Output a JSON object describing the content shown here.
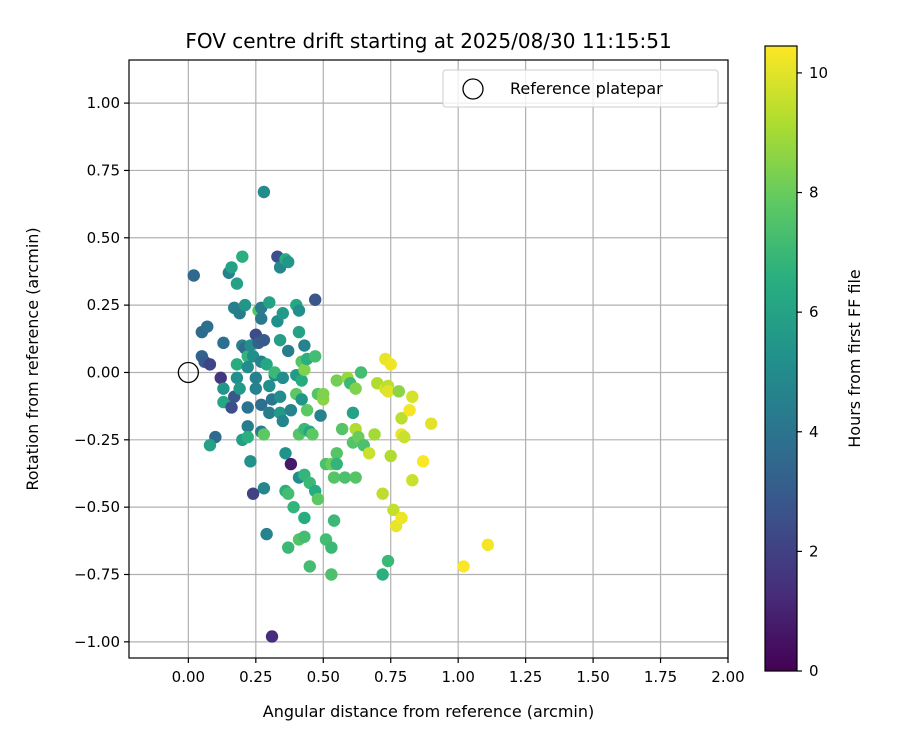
{
  "chart_data": {
    "type": "scatter",
    "title": "FOV centre drift starting at 2025/08/30 11:15:51",
    "xlabel": "Angular distance from reference (arcmin)",
    "ylabel": "Rotation from reference (arcmin)",
    "xlim": [
      -0.22,
      2.0
    ],
    "ylim": [
      -1.06,
      1.16
    ],
    "xticks": [
      0.0,
      0.25,
      0.5,
      0.75,
      1.0,
      1.25,
      1.5,
      1.75,
      2.0
    ],
    "xtick_labels": [
      "0.00",
      "0.25",
      "0.50",
      "0.75",
      "1.00",
      "1.25",
      "1.50",
      "1.75",
      "2.00"
    ],
    "yticks": [
      1.0,
      0.75,
      0.5,
      0.25,
      0.0,
      -0.25,
      -0.5,
      -0.75,
      -1.0
    ],
    "ytick_labels": [
      "1.00",
      "0.75",
      "0.50",
      "0.25",
      "0.00",
      "−0.25",
      "−0.50",
      "−0.75",
      "−1.00"
    ],
    "grid": true,
    "colormap": "viridis",
    "colorbar": {
      "label": "Hours from first FF file",
      "range": [
        0,
        10.45
      ],
      "ticks": [
        0,
        2,
        4,
        6,
        8,
        10
      ],
      "tick_labels": [
        "0",
        "2",
        "4",
        "6",
        "8",
        "10"
      ]
    },
    "legend": {
      "position": "top-right",
      "entries": [
        "Reference platepar"
      ]
    },
    "reference": {
      "x": 0.0,
      "y": 0.0
    },
    "points": [
      [
        0.02,
        0.36,
        3.5
      ],
      [
        0.05,
        0.15,
        3.6
      ],
      [
        0.07,
        0.17,
        3.8
      ],
      [
        0.05,
        0.06,
        3.3
      ],
      [
        0.06,
        0.04,
        3.0
      ],
      [
        0.08,
        0.03,
        2.2
      ],
      [
        0.1,
        -0.24,
        3.6
      ],
      [
        0.08,
        -0.27,
        6.0
      ],
      [
        0.12,
        -0.02,
        1.6
      ],
      [
        0.13,
        -0.06,
        5.5
      ],
      [
        0.13,
        -0.11,
        6.2
      ],
      [
        0.13,
        0.11,
        3.8
      ],
      [
        0.15,
        0.37,
        4.6
      ],
      [
        0.16,
        0.39,
        6.0
      ],
      [
        0.17,
        0.24,
        4.5
      ],
      [
        0.18,
        0.33,
        6.0
      ],
      [
        0.16,
        -0.13,
        2.5
      ],
      [
        0.17,
        -0.09,
        2.8
      ],
      [
        0.18,
        -0.02,
        5.2
      ],
      [
        0.18,
        0.03,
        6.5
      ],
      [
        0.19,
        0.22,
        4.4
      ],
      [
        0.2,
        0.1,
        4.6
      ],
      [
        0.19,
        -0.06,
        5.6
      ],
      [
        0.2,
        -0.25,
        5.8
      ],
      [
        0.2,
        0.43,
        6.6
      ],
      [
        0.21,
        0.25,
        5.5
      ],
      [
        0.21,
        0.09,
        3.6
      ],
      [
        0.22,
        0.06,
        6.8
      ],
      [
        0.22,
        0.02,
        5.0
      ],
      [
        0.22,
        -0.13,
        4.0
      ],
      [
        0.22,
        -0.2,
        4.4
      ],
      [
        0.22,
        -0.24,
        6.6
      ],
      [
        0.23,
        -0.33,
        5.3
      ],
      [
        0.24,
        -0.45,
        2.0
      ],
      [
        0.23,
        0.1,
        5.0
      ],
      [
        0.24,
        0.06,
        5.2
      ],
      [
        0.25,
        -0.02,
        4.5
      ],
      [
        0.25,
        -0.06,
        4.6
      ],
      [
        0.25,
        0.14,
        2.4
      ],
      [
        0.26,
        0.11,
        3.2
      ],
      [
        0.26,
        0.23,
        7.6
      ],
      [
        0.27,
        0.2,
        4.2
      ],
      [
        0.27,
        0.04,
        4.6
      ],
      [
        0.27,
        -0.12,
        3.8
      ],
      [
        0.27,
        -0.22,
        4.4
      ],
      [
        0.27,
        0.24,
        4.4
      ],
      [
        0.28,
        0.67,
        5.0
      ],
      [
        0.28,
        -0.43,
        4.8
      ],
      [
        0.28,
        -0.23,
        7.8
      ],
      [
        0.28,
        0.12,
        3.0
      ],
      [
        0.29,
        -0.6,
        4.6
      ],
      [
        0.29,
        0.03,
        6.2
      ],
      [
        0.3,
        0.26,
        6.0
      ],
      [
        0.3,
        -0.05,
        5.2
      ],
      [
        0.31,
        -0.98,
        1.3
      ],
      [
        0.3,
        -0.15,
        4.4
      ],
      [
        0.31,
        -0.1,
        4.1
      ],
      [
        0.32,
        -0.01,
        4.8
      ],
      [
        0.32,
        0.0,
        7.0
      ],
      [
        0.33,
        0.43,
        2.5
      ],
      [
        0.33,
        0.19,
        5.2
      ],
      [
        0.34,
        0.12,
        5.8
      ],
      [
        0.34,
        0.39,
        4.8
      ],
      [
        0.34,
        -0.09,
        5.0
      ],
      [
        0.34,
        -0.15,
        5.6
      ],
      [
        0.35,
        0.22,
        5.6
      ],
      [
        0.35,
        -0.02,
        5.0
      ],
      [
        0.35,
        -0.18,
        4.7
      ],
      [
        0.36,
        0.42,
        6.5
      ],
      [
        0.36,
        -0.3,
        5.3
      ],
      [
        0.36,
        -0.44,
        6.6
      ],
      [
        0.37,
        -0.45,
        7.2
      ],
      [
        0.37,
        0.41,
        5.5
      ],
      [
        0.37,
        -0.65,
        7.0
      ],
      [
        0.37,
        0.08,
        4.4
      ],
      [
        0.38,
        -0.14,
        4.6
      ],
      [
        0.38,
        -0.34,
        0.7
      ],
      [
        0.39,
        -0.5,
        6.8
      ],
      [
        0.4,
        0.25,
        6.2
      ],
      [
        0.4,
        -0.01,
        5.6
      ],
      [
        0.4,
        -0.08,
        7.8
      ],
      [
        0.41,
        0.15,
        6.0
      ],
      [
        0.41,
        0.23,
        5.2
      ],
      [
        0.41,
        -0.23,
        7.6
      ],
      [
        0.41,
        -0.39,
        5.0
      ],
      [
        0.41,
        -0.62,
        7.6
      ],
      [
        0.42,
        0.04,
        7.6
      ],
      [
        0.42,
        -0.03,
        6.4
      ],
      [
        0.42,
        -0.1,
        5.4
      ],
      [
        0.43,
        0.1,
        4.6
      ],
      [
        0.43,
        0.01,
        8.4
      ],
      [
        0.43,
        -0.21,
        7.0
      ],
      [
        0.43,
        -0.38,
        6.8
      ],
      [
        0.43,
        -0.61,
        7.2
      ],
      [
        0.43,
        -0.54,
        6.4
      ],
      [
        0.44,
        -0.14,
        7.8
      ],
      [
        0.44,
        0.05,
        6.6
      ],
      [
        0.45,
        -0.41,
        7.0
      ],
      [
        0.45,
        -0.72,
        7.2
      ],
      [
        0.45,
        -0.22,
        6.2
      ],
      [
        0.46,
        -0.23,
        7.8
      ],
      [
        0.47,
        0.27,
        2.8
      ],
      [
        0.47,
        -0.44,
        6.4
      ],
      [
        0.47,
        0.06,
        7.2
      ],
      [
        0.48,
        -0.08,
        7.6
      ],
      [
        0.48,
        -0.47,
        7.8
      ],
      [
        0.49,
        -0.16,
        4.6
      ],
      [
        0.5,
        -0.1,
        8.6
      ],
      [
        0.5,
        -0.08,
        8.4
      ],
      [
        0.51,
        -0.34,
        7.4
      ],
      [
        0.51,
        -0.62,
        7.2
      ],
      [
        0.53,
        -0.34,
        8.0
      ],
      [
        0.53,
        -0.65,
        7.0
      ],
      [
        0.53,
        -0.75,
        7.4
      ],
      [
        0.54,
        -0.55,
        7.0
      ],
      [
        0.54,
        -0.39,
        7.6
      ],
      [
        0.55,
        -0.3,
        7.6
      ],
      [
        0.55,
        -0.34,
        6.8
      ],
      [
        0.55,
        -0.03,
        8.2
      ],
      [
        0.57,
        -0.21,
        7.6
      ],
      [
        0.58,
        -0.39,
        7.4
      ],
      [
        0.59,
        -0.02,
        8.8
      ],
      [
        0.6,
        -0.04,
        7.0
      ],
      [
        0.61,
        -0.15,
        6.0
      ],
      [
        0.61,
        -0.26,
        7.6
      ],
      [
        0.62,
        -0.21,
        9.2
      ],
      [
        0.62,
        -0.06,
        8.4
      ],
      [
        0.62,
        -0.39,
        7.6
      ],
      [
        0.63,
        -0.24,
        8.0
      ],
      [
        0.64,
        0.0,
        7.2
      ],
      [
        0.65,
        -0.27,
        7.4
      ],
      [
        0.67,
        -0.3,
        9.6
      ],
      [
        0.69,
        -0.23,
        9.0
      ],
      [
        0.7,
        -0.04,
        9.2
      ],
      [
        0.72,
        -0.45,
        9.4
      ],
      [
        0.72,
        -0.75,
        6.6
      ],
      [
        0.73,
        0.05,
        10.1
      ],
      [
        0.73,
        -0.06,
        9.8
      ],
      [
        0.74,
        -0.05,
        9.4
      ],
      [
        0.74,
        -0.07,
        10.0
      ],
      [
        0.74,
        -0.7,
        7.0
      ],
      [
        0.75,
        0.03,
        10.2
      ],
      [
        0.75,
        -0.31,
        9.2
      ],
      [
        0.76,
        -0.51,
        9.5
      ],
      [
        0.77,
        -0.57,
        10.1
      ],
      [
        0.78,
        -0.07,
        8.6
      ],
      [
        0.79,
        -0.54,
        10.2
      ],
      [
        0.79,
        -0.17,
        9.4
      ],
      [
        0.79,
        -0.23,
        10.1
      ],
      [
        0.8,
        -0.24,
        9.6
      ],
      [
        0.82,
        -0.14,
        10.3
      ],
      [
        0.83,
        -0.4,
        9.6
      ],
      [
        0.83,
        -0.09,
        9.8
      ],
      [
        0.87,
        -0.33,
        10.4
      ],
      [
        0.9,
        -0.19,
        10.0
      ],
      [
        1.02,
        -0.72,
        10.4
      ],
      [
        1.11,
        -0.64,
        10.3
      ]
    ]
  }
}
